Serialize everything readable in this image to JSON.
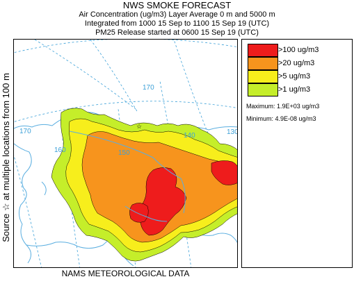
{
  "header": {
    "title": "NWS SMOKE FORECAST",
    "subtitle": "Air Concentration (ug/m3) Layer Average    0 m and  5000 m",
    "integration": "Integrated from 1000 15 Sep to 1100 15 Sep 19 (UTC)",
    "release": "PM25 Release started at 0600 15 Sep 19 (UTC)"
  },
  "side_label": "Source ☆  at multiple locations    from   100 m",
  "footer_label": "NAMS METEOROLOGICAL DATA",
  "map": {
    "grid_labels": [
      "170",
      "160",
      "150",
      "170",
      "140",
      "130"
    ],
    "colors": {
      "coast": "#5aaee0",
      "grid": "#3ba0d8"
    }
  },
  "legend": {
    "items": [
      {
        "label": ">100 ug/m3",
        "color": "#ee1c1c"
      },
      {
        "label": ">20 ug/m3",
        "color": "#f7941d"
      },
      {
        "label": ">5 ug/m3",
        "color": "#f7ee1c"
      },
      {
        "label": ">1 ug/m3",
        "color": "#c5ee2a"
      }
    ],
    "maximum": "Maximum: 1.9E+03 ug/m3",
    "minimum": "Minimum: 4.9E-08 ug/m3"
  }
}
